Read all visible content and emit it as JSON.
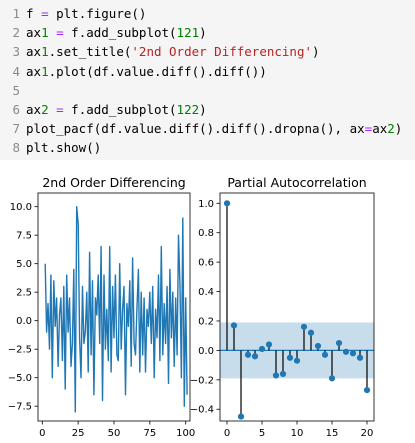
{
  "code": {
    "lines": [
      {
        "num": "1",
        "text": "f = plt.figure()"
      },
      {
        "num": "2",
        "text": "ax1 = f.add_subplot(121)"
      },
      {
        "num": "3",
        "text": "ax1.set_title('2nd Order Differencing')"
      },
      {
        "num": "4",
        "text": "ax1.plot(df.value.diff().diff())"
      },
      {
        "num": "5",
        "text": ""
      },
      {
        "num": "6",
        "text": "ax2 = f.add_subplot(122)"
      },
      {
        "num": "7",
        "text": "plot_pacf(df.value.diff().diff().dropna(), ax=ax2)"
      },
      {
        "num": "8",
        "text": "plt.show()"
      }
    ]
  },
  "chart_data": [
    {
      "type": "line",
      "title": "2nd Order Differencing",
      "xlabel": "",
      "ylabel": "",
      "xlim": [
        -3,
        103
      ],
      "ylim": [
        -8.8,
        11.2
      ],
      "xticks": [
        0,
        25,
        50,
        75,
        100
      ],
      "yticks": [
        10.0,
        7.5,
        5.0,
        2.5,
        0.0,
        -2.5,
        -5.0,
        -7.5
      ],
      "ytick_labels": [
        "10.0",
        "7.5",
        "5.0",
        "2.5",
        "0.0",
        "−2.5",
        "−5.0",
        "−7.5"
      ],
      "color": "#1f77b4",
      "x": [
        2,
        3,
        4,
        5,
        6,
        7,
        8,
        9,
        10,
        11,
        12,
        13,
        14,
        15,
        16,
        17,
        18,
        19,
        20,
        21,
        22,
        23,
        24,
        25,
        26,
        27,
        28,
        29,
        30,
        31,
        32,
        33,
        34,
        35,
        36,
        37,
        38,
        39,
        40,
        41,
        42,
        43,
        44,
        45,
        46,
        47,
        48,
        49,
        50,
        51,
        52,
        53,
        54,
        55,
        56,
        57,
        58,
        59,
        60,
        61,
        62,
        63,
        64,
        65,
        66,
        67,
        68,
        69,
        70,
        71,
        72,
        73,
        74,
        75,
        76,
        77,
        78,
        79,
        80,
        81,
        82,
        83,
        84,
        85,
        86,
        87,
        88,
        89,
        90,
        91,
        92,
        93,
        94,
        95,
        96,
        97,
        98,
        99,
        100,
        101
      ],
      "values": [
        5.0,
        -1.0,
        1.5,
        -2.5,
        4.0,
        -5.0,
        3.5,
        -0.5,
        2.0,
        -4.0,
        0.5,
        2.0,
        -3.5,
        3.0,
        -6.0,
        4.0,
        -1.0,
        2.0,
        -4.0,
        -2.0,
        4.5,
        -8.0,
        10.0,
        8.5,
        -1.5,
        -5.0,
        3.0,
        -2.0,
        -1.0,
        2.5,
        -4.5,
        6.0,
        -3.0,
        3.5,
        -6.5,
        2.0,
        0.5,
        4.0,
        -2.0,
        6.5,
        -7.0,
        4.0,
        -2.5,
        1.0,
        -3.5,
        6.5,
        -4.5,
        3.0,
        -1.5,
        4.0,
        -3.0,
        -3.5,
        5.0,
        -2.5,
        1.0,
        3.0,
        -6.5,
        1.5,
        -0.5,
        3.5,
        -4.0,
        5.5,
        -2.0,
        -3.0,
        1.0,
        4.5,
        -4.5,
        2.5,
        -3.0,
        2.0,
        -4.5,
        1.0,
        -0.5,
        2.5,
        -2.0,
        3.0,
        -5.0,
        1.0,
        -1.5,
        4.0,
        -3.5,
        6.5,
        -3.0,
        1.5,
        -2.0,
        3.0,
        -5.5,
        4.5,
        -1.5,
        2.5,
        -4.0,
        2.0,
        -3.0,
        7.5,
        3.0,
        -5.0,
        9.0,
        -7.5,
        2.0,
        -6.5
      ]
    },
    {
      "type": "stem",
      "title": "Partial Autocorrelation",
      "xlabel": "",
      "ylabel": "",
      "xlim": [
        -1,
        21
      ],
      "ylim": [
        -0.48,
        1.07
      ],
      "xticks": [
        0,
        5,
        10,
        15,
        20
      ],
      "yticks": [
        1.0,
        0.8,
        0.6,
        0.4,
        0.2,
        0.0,
        -0.2,
        -0.4
      ],
      "ytick_labels": [
        "1.0",
        "0.8",
        "0.6",
        "0.4",
        "0.2",
        "0.0",
        "−0.2",
        "−0.4"
      ],
      "confidence_band": [
        -0.19,
        0.19
      ],
      "color": "#1f77b4",
      "lags": [
        0,
        1,
        2,
        3,
        4,
        5,
        6,
        7,
        8,
        9,
        10,
        11,
        12,
        13,
        14,
        15,
        16,
        17,
        18,
        19,
        20
      ],
      "values": [
        1.0,
        0.17,
        -0.45,
        -0.03,
        -0.04,
        0.01,
        0.04,
        -0.17,
        -0.16,
        -0.05,
        -0.07,
        0.16,
        0.12,
        0.03,
        -0.03,
        -0.19,
        0.05,
        -0.01,
        -0.02,
        -0.05,
        -0.27
      ]
    }
  ]
}
